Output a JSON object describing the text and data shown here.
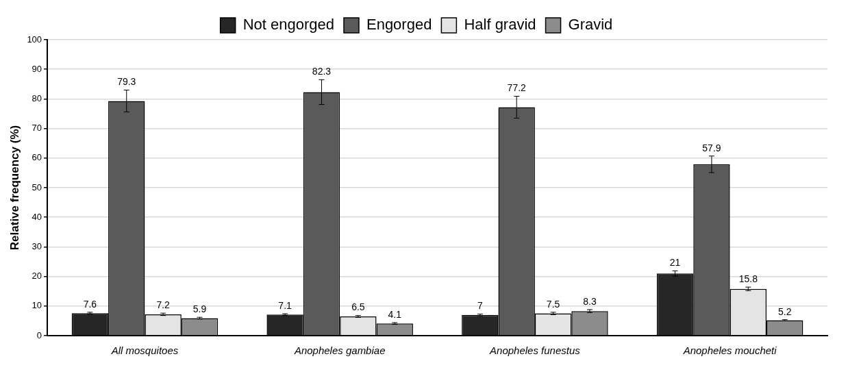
{
  "chart_data": {
    "type": "bar",
    "ylabel": "Relative frequency (%)",
    "categories": [
      "All mosquitoes",
      "Anopheles gambiae",
      "Anopheles funestus",
      "Anopheles moucheti"
    ],
    "series": [
      {
        "name": "Not engorged",
        "color": "#262626",
        "values": [
          7.6,
          7.1,
          7,
          21
        ],
        "errors": [
          0.3,
          0.3,
          0.3,
          0.9
        ]
      },
      {
        "name": "Engorged",
        "color": "#5a5a5a",
        "values": [
          79.3,
          82.3,
          77.2,
          57.9
        ],
        "errors": [
          3.7,
          4.2,
          3.7,
          2.8
        ]
      },
      {
        "name": "Half gravid",
        "color": "#e4e4e4",
        "values": [
          7.2,
          6.5,
          7.5,
          15.8
        ],
        "errors": [
          0.4,
          0.3,
          0.4,
          0.6
        ]
      },
      {
        "name": "Gravid",
        "color": "#8c8c8c",
        "values": [
          5.9,
          4.1,
          8.3,
          5.2
        ],
        "errors": [
          0.3,
          0.3,
          0.5,
          0.2
        ]
      }
    ],
    "ylim": [
      0,
      100
    ],
    "yticks": [
      0,
      10,
      20,
      30,
      40,
      50,
      60,
      70,
      80,
      90,
      100
    ],
    "grid": "y",
    "legend": "top",
    "data_labels": true
  }
}
